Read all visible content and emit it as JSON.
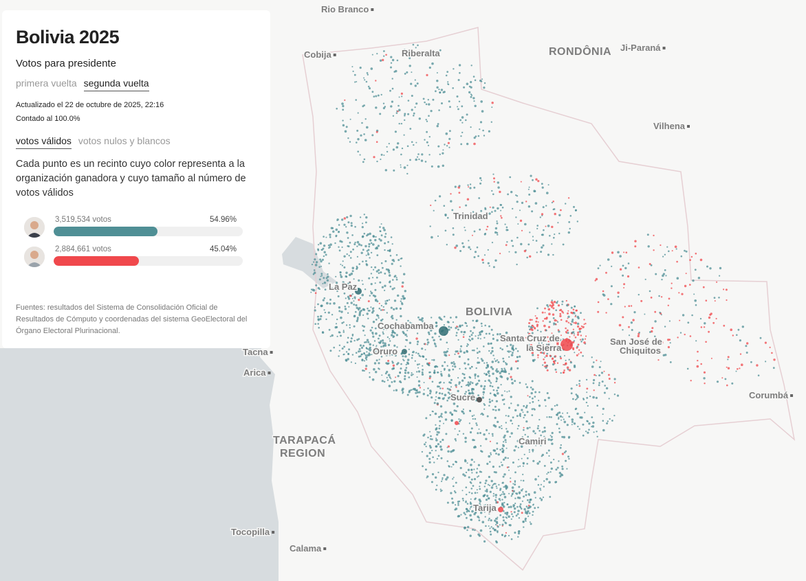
{
  "panel": {
    "title": "Bolivia 2025",
    "subtitle": "Votos para presidente",
    "round_tabs": [
      "primera vuelta",
      "segunda vuelta"
    ],
    "updated": "Actualizado el 22 de octubre de 2025, 22:16",
    "counted": "Contado al 100.0%",
    "vote_tabs": [
      "votos válidos",
      "votos nulos y blancos"
    ],
    "description": "Cada punto es un recinto cuyo color representa a la organización ganadora y cuyo tamaño al número de votos válidos",
    "candidates": [
      {
        "votes": 3519534,
        "votes_label": "3,519,534 votos",
        "share": 54.96,
        "share_label": "54.96%",
        "color": "#4f8f95"
      },
      {
        "votes": 2884661,
        "votes_label": "2,884,661 votos",
        "share": 45.04,
        "share_label": "45.04%",
        "color": "#f0484c"
      }
    ],
    "sources": "Fuentes: resultados del Sistema de Consolidación Oficial de Resultados de Cómputo y coordenadas del sistema GeoElectoral del Órgano Electoral Plurinacional."
  },
  "map": {
    "labels": [
      "Rio Branco",
      "Cobija",
      "Riberalta",
      "RONDÔNIA",
      "Ji-Paraná",
      "Vilhena",
      "Trinidad",
      "La Paz",
      "BOLIVIA",
      "Cochabamba",
      "Santa Cruz de",
      "la Sierra",
      "San José de",
      "Chiquitos",
      "Oruro",
      "Tacna",
      "Arica",
      "Sucre",
      "Camiri",
      "Corumbá",
      "TARAPACÁ",
      "REGION",
      "Tarija",
      "Tocopilla",
      "Calama"
    ]
  }
}
